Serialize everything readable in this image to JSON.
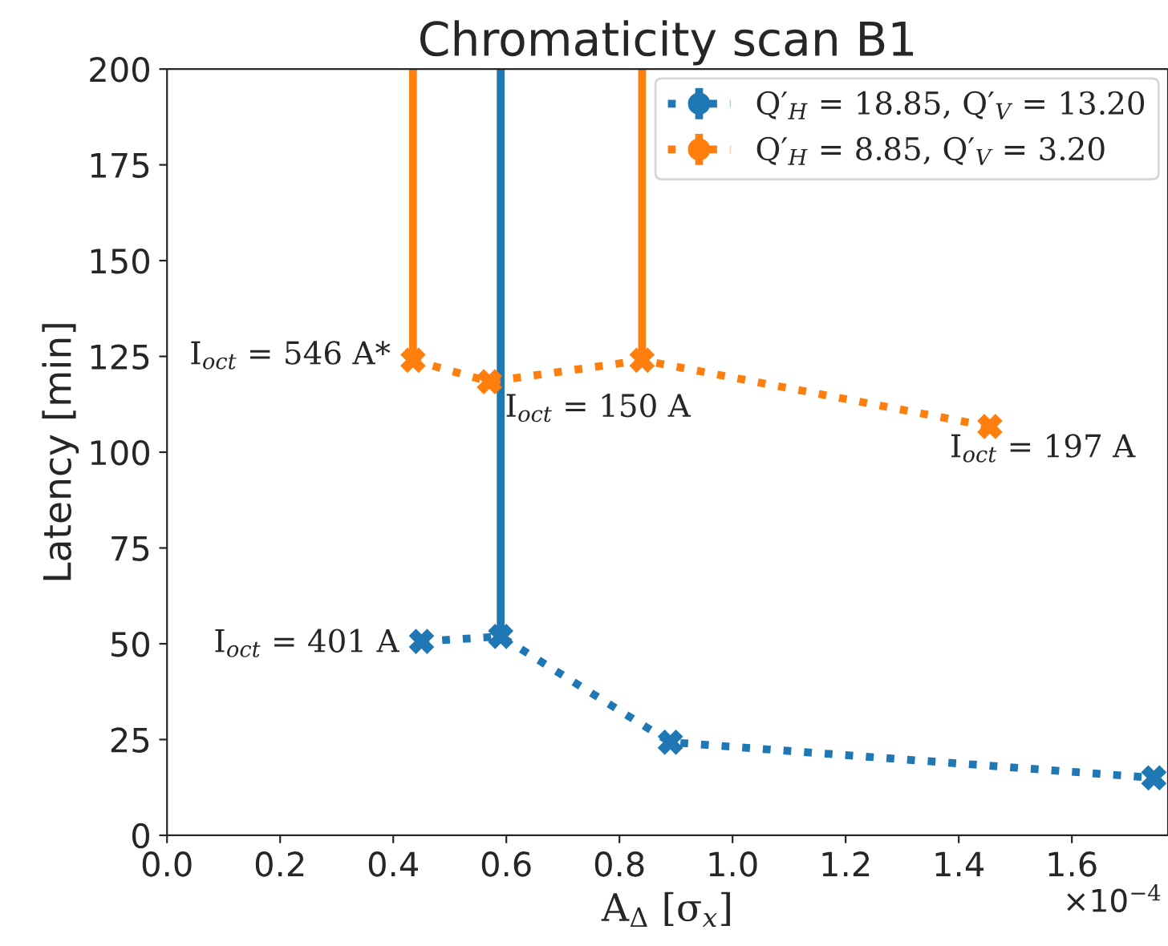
{
  "chart_data": {
    "type": "line",
    "title": "Chromaticity scan B1",
    "xlabel": "A$_{Δ}$ [σ$_{x}$]",
    "ylabel": "Latency [min]",
    "xlim": [
      0,
      1.77
    ],
    "xticks": [
      {
        "value": 0,
        "label": "0.0"
      },
      0.2,
      0.4,
      0.6,
      0.8,
      {
        "value": 1,
        "label": "1.0"
      },
      1.2,
      1.4,
      1.6
    ],
    "ylim": [
      0,
      200
    ],
    "yticks": [
      0,
      25,
      50,
      75,
      100,
      125,
      150,
      175,
      200
    ],
    "marker": "cross",
    "line_style": "dotted",
    "legend": "top right",
    "grid": false,
    "series": [
      {
        "name": "Q′$_{H}$ = 18.85, Q′$_{V}$ = 13.20",
        "color": "#1f77b4",
        "x": [
          0.45,
          0.59,
          0.89,
          1.745
        ],
        "values": [
          50.6,
          51.9,
          24.3,
          15
        ],
        "errors": [
          null,
          [
            51.9,
            200
          ],
          null,
          null
        ]
      },
      {
        "name": "Q′$_{H}$ = 8.85, Q′$_{V}$ = 3.20",
        "color": "#ff7f0e",
        "x": [
          0.435,
          0.57,
          0.84,
          1.455
        ],
        "values": [
          124,
          118.4,
          124,
          106.7
        ],
        "errors": [
          [
            124,
            200
          ],
          null,
          [
            124,
            200
          ],
          null
        ]
      }
    ],
    "annotations": [
      {
        "text": "I$_{oct}$ = 401 A",
        "x": 0.45,
        "y": 50.6
      },
      {
        "text": "I$_{oct}$ = 546 A*",
        "x": 0.435,
        "y": 124
      },
      {
        "text": "I$_{oct}$ = 150 A",
        "x": 0.57,
        "y": 118.4
      },
      {
        "text": "I$_{oct}$ = 197 A",
        "x": 1.455,
        "y": 106.7
      },
      "×10$^{−4}$"
    ]
  }
}
